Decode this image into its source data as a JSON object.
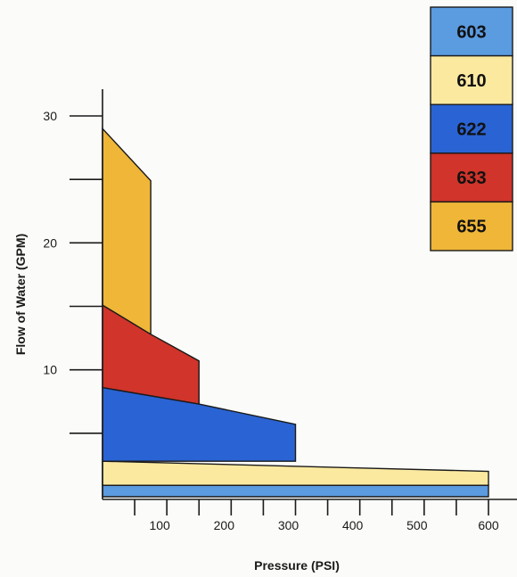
{
  "chart_data": {
    "type": "area",
    "title": "",
    "xlabel": "Pressure (PSI)",
    "ylabel": "Flow of Water (GPM)",
    "xlim": [
      0,
      600
    ],
    "ylim": [
      0,
      32
    ],
    "x_ticks": [
      100,
      200,
      300,
      400,
      500,
      600
    ],
    "x_minor_ticks": [
      50,
      100,
      150,
      200,
      250,
      300,
      350,
      400,
      450,
      500,
      550,
      600
    ],
    "y_ticks": [
      10,
      20,
      30
    ],
    "y_minor_ticks": [
      5,
      10,
      15,
      20,
      25,
      30
    ],
    "grid": false,
    "legend_position": "top-right",
    "series": [
      {
        "name": "603",
        "color": "#5b9be0",
        "bottom": [
          [
            0,
            0
          ],
          [
            600,
            0
          ]
        ],
        "top": [
          [
            0,
            0.9
          ],
          [
            600,
            0.9
          ]
        ]
      },
      {
        "name": "610",
        "color": "#fbe9a0",
        "bottom": [
          [
            0,
            0.9
          ],
          [
            600,
            0.9
          ]
        ],
        "top": [
          [
            0,
            2.8
          ],
          [
            600,
            2.0
          ]
        ]
      },
      {
        "name": "622",
        "color": "#2a63d3",
        "bottom": [
          [
            0,
            2.8
          ],
          [
            300,
            2.8
          ]
        ],
        "top": [
          [
            0,
            8.6
          ],
          [
            150,
            7.3
          ],
          [
            300,
            5.7
          ]
        ]
      },
      {
        "name": "633",
        "color": "#d0342a",
        "bottom": [
          [
            0,
            8.6
          ],
          [
            150,
            7.3
          ]
        ],
        "top": [
          [
            0,
            15.1
          ],
          [
            75,
            12.8
          ],
          [
            150,
            10.7
          ]
        ]
      },
      {
        "name": "655",
        "color": "#efb638",
        "bottom": [
          [
            0,
            15.1
          ],
          [
            75,
            12.8
          ]
        ],
        "top": [
          [
            0,
            29
          ],
          [
            75,
            24.9
          ]
        ]
      }
    ]
  }
}
